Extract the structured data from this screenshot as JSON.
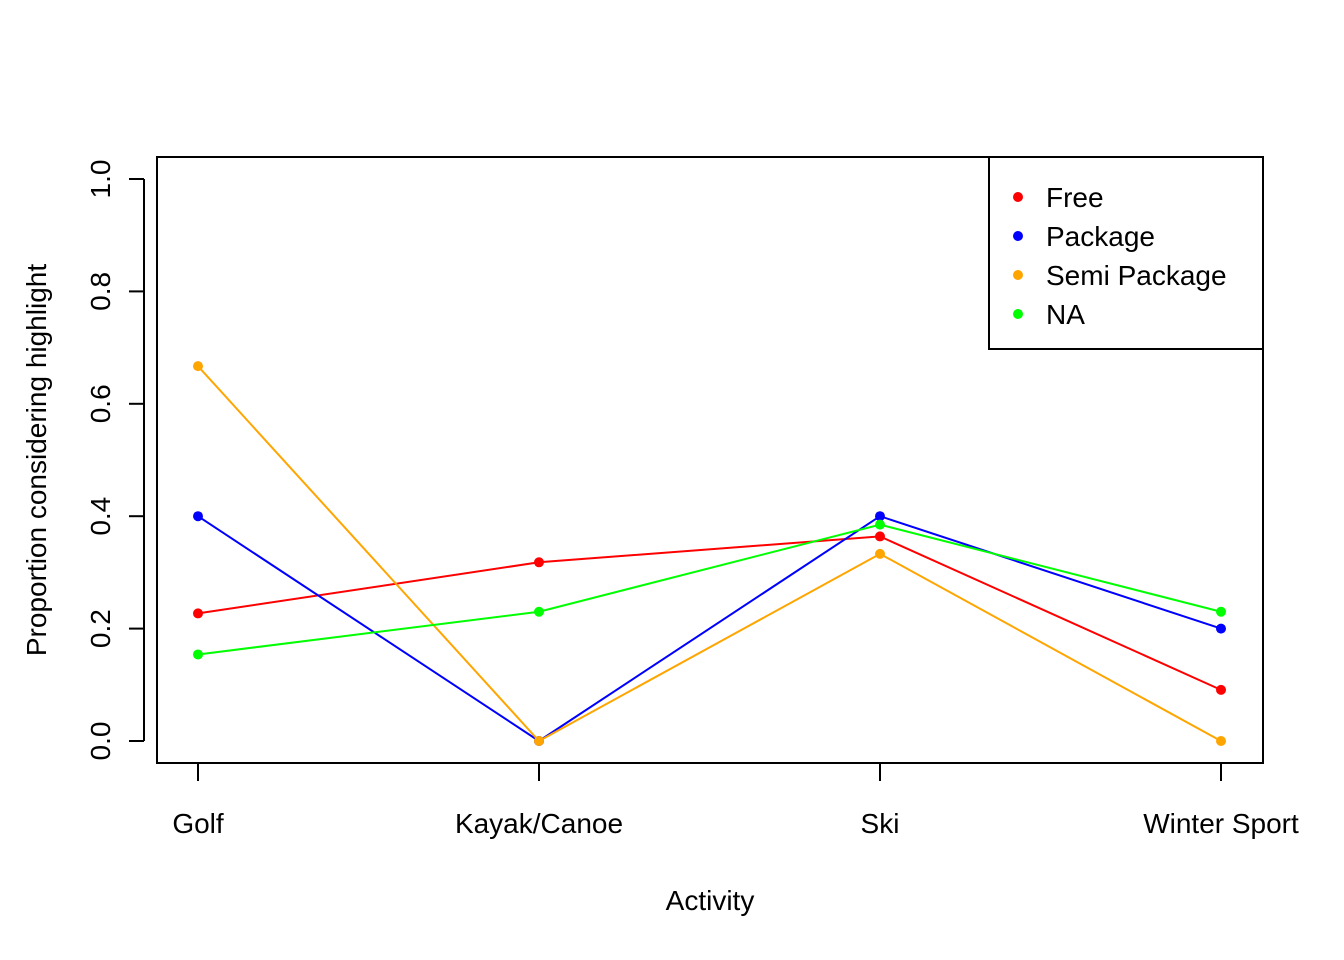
{
  "chart_data": {
    "type": "line",
    "title": "",
    "xlabel": "Activity",
    "ylabel": "Proportion considering highlight",
    "categories": [
      "Golf",
      "Kayak/Canoe",
      "Ski",
      "Winter Sport"
    ],
    "ylim": [
      0,
      1
    ],
    "yticks": [
      "0.0",
      "0.2",
      "0.4",
      "0.6",
      "0.8",
      "1.0"
    ],
    "grid": false,
    "legend_position": "top-right",
    "series": [
      {
        "name": "Free",
        "color": "#ff0000",
        "values": [
          0.227,
          0.318,
          0.364,
          0.091
        ]
      },
      {
        "name": "Package",
        "color": "#0000ff",
        "values": [
          0.4,
          0.0,
          0.4,
          0.2
        ]
      },
      {
        "name": "Semi Package",
        "color": "#ffa500",
        "values": [
          0.667,
          0.0,
          0.333,
          0.0
        ]
      },
      {
        "name": "NA",
        "color": "#00ff00",
        "values": [
          0.154,
          0.23,
          0.385,
          0.23
        ]
      }
    ]
  }
}
